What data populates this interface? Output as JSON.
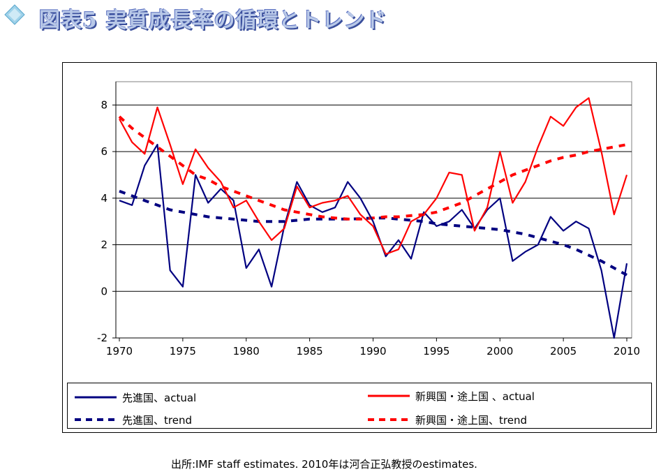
{
  "page_title": "図表5 実質成長率の循環とトレンド",
  "footnote": "出所:IMF staff estimates.  2010年は河合正弘教授のestimates.",
  "chart_data": {
    "type": "line",
    "title": "",
    "xlabel": "",
    "ylabel": "",
    "xlim": [
      1970,
      2010
    ],
    "ylim": [
      -2,
      9
    ],
    "x_ticks": [
      1970,
      1975,
      1980,
      1985,
      1990,
      1995,
      2000,
      2005,
      2010
    ],
    "y_ticks": [
      -2,
      0,
      2,
      4,
      6,
      8
    ],
    "y_tick_labels": [
      "-2",
      "0",
      "2",
      "4",
      "6",
      "8"
    ],
    "grid": "horizontal",
    "legend_position": "bottom",
    "x": [
      1970,
      1971,
      1972,
      1973,
      1974,
      1975,
      1976,
      1977,
      1978,
      1979,
      1980,
      1981,
      1982,
      1983,
      1984,
      1985,
      1986,
      1987,
      1988,
      1989,
      1990,
      1991,
      1992,
      1993,
      1994,
      1995,
      1996,
      1997,
      1998,
      1999,
      2000,
      2001,
      2002,
      2003,
      2004,
      2005,
      2006,
      2007,
      2008,
      2009,
      2010
    ],
    "series": [
      {
        "name": "先進国、actual",
        "color": "#000080",
        "style": "solid",
        "values": [
          3.9,
          3.7,
          5.4,
          6.3,
          0.9,
          0.2,
          5.0,
          3.8,
          4.4,
          3.9,
          1.0,
          1.8,
          0.2,
          2.8,
          4.7,
          3.7,
          3.4,
          3.6,
          4.7,
          4.0,
          3.0,
          1.5,
          2.2,
          1.4,
          3.4,
          2.8,
          3.0,
          3.5,
          2.7,
          3.5,
          4.0,
          1.3,
          1.7,
          2.0,
          3.2,
          2.6,
          3.0,
          2.7,
          0.9,
          -2.0,
          1.2
        ]
      },
      {
        "name": "新興国・途上国 、actual",
        "color": "#ff0000",
        "style": "solid",
        "values": [
          7.4,
          6.4,
          5.9,
          7.9,
          6.3,
          4.6,
          6.1,
          5.3,
          4.7,
          3.6,
          3.9,
          3.0,
          2.2,
          2.7,
          4.5,
          3.6,
          3.8,
          3.9,
          4.1,
          3.3,
          2.8,
          1.6,
          1.8,
          3.0,
          3.3,
          4.0,
          5.1,
          5.0,
          2.6,
          3.6,
          6.0,
          3.8,
          4.7,
          6.2,
          7.5,
          7.1,
          7.9,
          8.3,
          6.0,
          3.3,
          5.0
        ]
      },
      {
        "name": "先進国、trend",
        "color": "#000080",
        "style": "dashed",
        "values": [
          4.3,
          4.1,
          3.9,
          3.7,
          3.5,
          3.4,
          3.3,
          3.2,
          3.15,
          3.1,
          3.05,
          3.0,
          3.0,
          3.0,
          3.05,
          3.1,
          3.1,
          3.1,
          3.1,
          3.12,
          3.15,
          3.15,
          3.1,
          3.05,
          3.0,
          2.9,
          2.85,
          2.8,
          2.75,
          2.7,
          2.65,
          2.55,
          2.45,
          2.3,
          2.15,
          2.0,
          1.8,
          1.55,
          1.3,
          1.0,
          0.7
        ]
      },
      {
        "name": "新興国・途上国、trend",
        "color": "#ff0000",
        "style": "dashed",
        "values": [
          7.5,
          7.0,
          6.6,
          6.2,
          5.8,
          5.4,
          5.0,
          4.8,
          4.5,
          4.3,
          4.1,
          3.9,
          3.7,
          3.5,
          3.4,
          3.3,
          3.2,
          3.15,
          3.1,
          3.1,
          3.15,
          3.2,
          3.2,
          3.25,
          3.3,
          3.4,
          3.6,
          3.8,
          4.1,
          4.4,
          4.7,
          5.0,
          5.2,
          5.4,
          5.6,
          5.75,
          5.85,
          6.0,
          6.1,
          6.2,
          6.3
        ]
      }
    ]
  },
  "legend": {
    "items": [
      {
        "label": "先進国、actual",
        "color": "#000080",
        "style": "solid"
      },
      {
        "label": "新興国・途上国 、actual",
        "color": "#ff0000",
        "style": "solid"
      },
      {
        "label": "先進国、trend",
        "color": "#000080",
        "style": "dashed"
      },
      {
        "label": "新興国・途上国、trend",
        "color": "#ff0000",
        "style": "dashed"
      }
    ]
  }
}
